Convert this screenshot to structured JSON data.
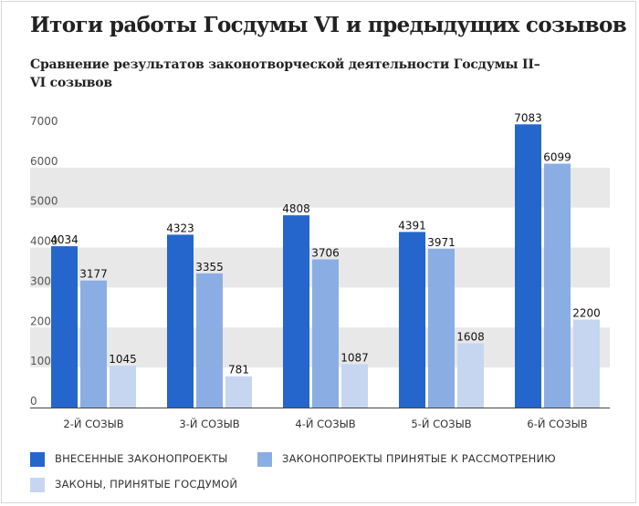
{
  "header": {
    "title": "Итоги работы Госдумы VI и предыдущих созывов",
    "subtitle": "Сравнение результатов законотворческой деятельности Госдумы II–VI созывов"
  },
  "chart_data": {
    "type": "bar",
    "categories": [
      "2-Й СОЗЫВ",
      "3-Й СОЗЫВ",
      "4-Й СОЗЫВ",
      "5-Й СОЗЫВ",
      "6-Й СОЗЫВ"
    ],
    "series": [
      {
        "name": "ВНЕСЕННЫЕ ЗАКОНОПРОЕКТЫ",
        "values": [
          4034,
          4323,
          4808,
          4391,
          7083
        ],
        "color": "#2466cc"
      },
      {
        "name": "ЗАКОНОПРОЕКТЫ ПРИНЯТЫЕ К РАССМОТРЕНИЮ",
        "values": [
          3177,
          3355,
          3706,
          3971,
          6099
        ],
        "color": "#8aaee4"
      },
      {
        "name": "ЗАКОНЫ, ПРИНЯТЫЕ ГОСДУМОЙ",
        "values": [
          1045,
          781,
          1087,
          1608,
          2200
        ],
        "color": "#c6d6f1"
      }
    ],
    "yticks": [
      0,
      1000,
      2000,
      3000,
      4000,
      5000,
      6000,
      7000
    ],
    "ylim": [
      0,
      7000
    ],
    "grid": "alternating bands",
    "data_labels": true,
    "legend_position": "bottom"
  }
}
